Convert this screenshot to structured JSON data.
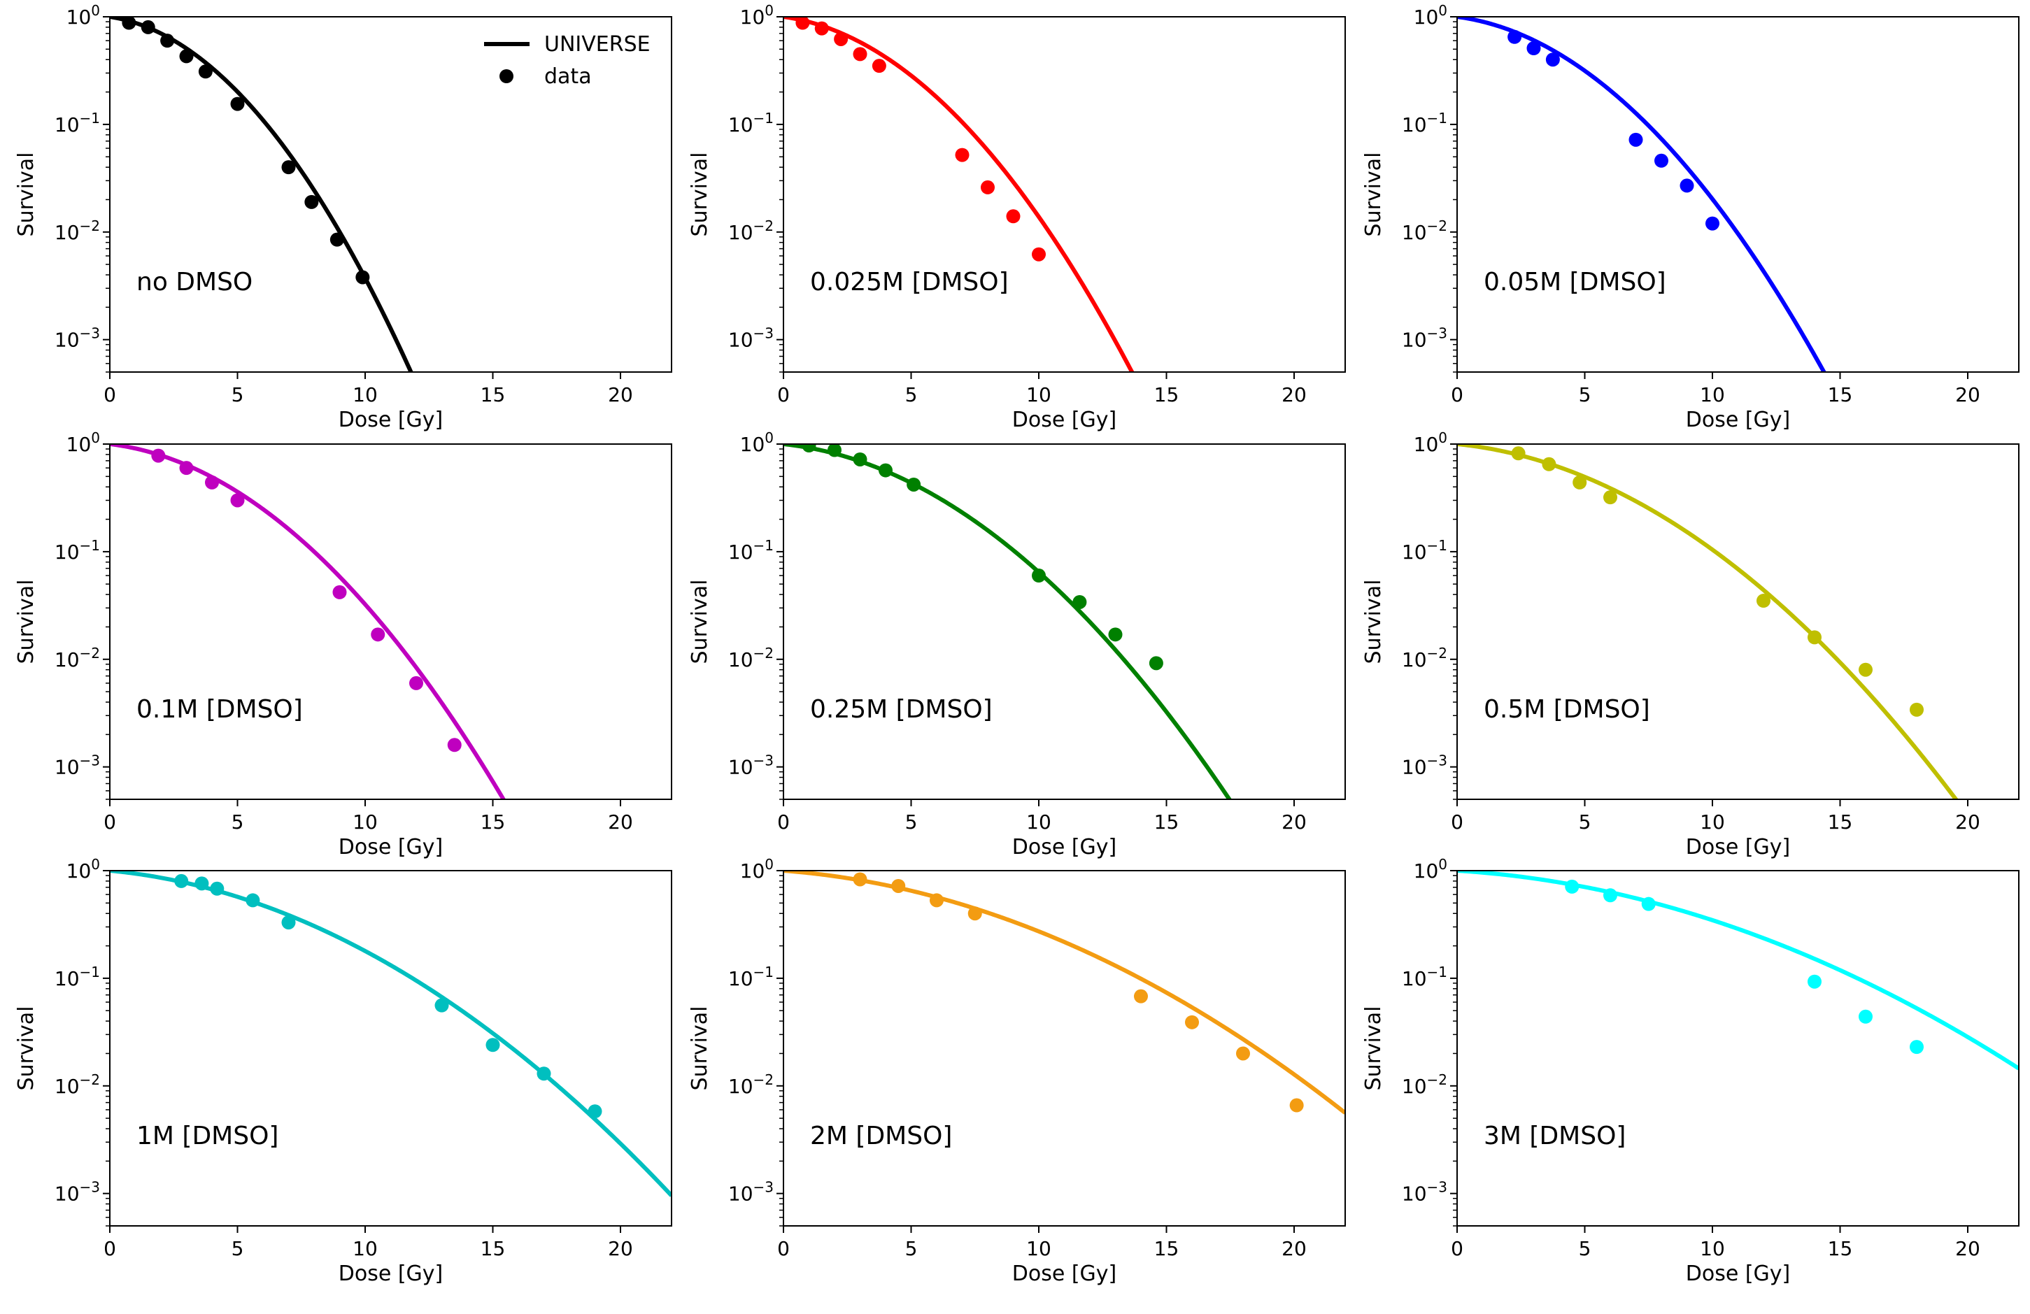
{
  "figure": {
    "rows": 3,
    "cols": 3,
    "legend": {
      "position": "top-right of first panel",
      "entries": [
        {
          "kind": "line",
          "label": "UNIVERSE"
        },
        {
          "kind": "marker",
          "label": "data"
        }
      ]
    }
  },
  "chart_data": [
    {
      "type": "line+scatter",
      "annotation": "no DMSO",
      "color": "#000000",
      "xlabel": "Dose [Gy]",
      "ylabel": "Survival",
      "xlim": [
        0,
        22
      ],
      "ylim": [
        0.0005,
        1
      ],
      "yscale": "log",
      "xticks": [
        0,
        5,
        10,
        15,
        20
      ],
      "yticks": [
        {
          "base": "10",
          "exp": "0",
          "value": 1
        },
        {
          "base": "10",
          "exp": "−1",
          "value": 0.1
        },
        {
          "base": "10",
          "exp": "−2",
          "value": 0.01
        },
        {
          "base": "10",
          "exp": "−3",
          "value": 0.001
        }
      ],
      "model": {
        "alpha": 0.083,
        "beta": 0.0476
      },
      "data": {
        "x": [
          0.75,
          1.5,
          2.25,
          3.0,
          3.75,
          5.0,
          7.0,
          7.9,
          8.9,
          9.9
        ],
        "y": [
          0.88,
          0.8,
          0.6,
          0.43,
          0.31,
          0.155,
          0.04,
          0.019,
          0.0085,
          0.0038
        ]
      }
    },
    {
      "type": "line+scatter",
      "annotation": "0.025M [DMSO]",
      "color": "#ff0000",
      "xlabel": "Dose [Gy]",
      "ylabel": "Survival",
      "xlim": [
        0,
        22
      ],
      "ylim": [
        0.0005,
        1
      ],
      "yscale": "log",
      "xticks": [
        0,
        5,
        10,
        15,
        20
      ],
      "yticks": [
        {
          "base": "10",
          "exp": "0",
          "value": 1
        },
        {
          "base": "10",
          "exp": "−1",
          "value": 0.1
        },
        {
          "base": "10",
          "exp": "−2",
          "value": 0.01
        },
        {
          "base": "10",
          "exp": "−3",
          "value": 0.001
        }
      ],
      "model": {
        "alpha": 0.075,
        "beta": 0.0353
      },
      "data": {
        "x": [
          0.75,
          1.5,
          2.25,
          3.0,
          3.75,
          7.0,
          8.0,
          9.0,
          10.0
        ],
        "y": [
          0.88,
          0.78,
          0.62,
          0.45,
          0.35,
          0.052,
          0.026,
          0.014,
          0.0062
        ]
      }
    },
    {
      "type": "line+scatter",
      "annotation": "0.05M [DMSO]",
      "color": "#0000ff",
      "xlabel": "Dose [Gy]",
      "ylabel": "Survival",
      "xlim": [
        0,
        22
      ],
      "ylim": [
        0.0005,
        1
      ],
      "yscale": "log",
      "xticks": [
        0,
        5,
        10,
        15,
        20
      ],
      "yticks": [
        {
          "base": "10",
          "exp": "0",
          "value": 1
        },
        {
          "base": "10",
          "exp": "−1",
          "value": 0.1
        },
        {
          "base": "10",
          "exp": "−2",
          "value": 0.01
        },
        {
          "base": "10",
          "exp": "−3",
          "value": 0.001
        }
      ],
      "model": {
        "alpha": 0.072,
        "beta": 0.0318
      },
      "data": {
        "x": [
          2.25,
          3.0,
          3.75,
          7.0,
          8.0,
          9.0,
          10.0
        ],
        "y": [
          0.65,
          0.51,
          0.4,
          0.072,
          0.046,
          0.027,
          0.012
        ]
      }
    },
    {
      "type": "line+scatter",
      "annotation": "0.1M [DMSO]",
      "color": "#bf00bf",
      "xlabel": "Dose [Gy]",
      "ylabel": "Survival",
      "xlim": [
        0,
        22
      ],
      "ylim": [
        0.0005,
        1
      ],
      "yscale": "log",
      "xticks": [
        0,
        5,
        10,
        15,
        20
      ],
      "yticks": [
        {
          "base": "10",
          "exp": "0",
          "value": 1
        },
        {
          "base": "10",
          "exp": "−1",
          "value": 0.1
        },
        {
          "base": "10",
          "exp": "−2",
          "value": 0.01
        },
        {
          "base": "10",
          "exp": "−3",
          "value": 0.001
        }
      ],
      "model": {
        "alpha": 0.066,
        "beta": 0.0277
      },
      "data": {
        "x": [
          1.9,
          3.0,
          4.0,
          5.0,
          9.0,
          10.5,
          12.0,
          13.5
        ],
        "y": [
          0.78,
          0.6,
          0.44,
          0.3,
          0.042,
          0.017,
          0.006,
          0.0016
        ]
      }
    },
    {
      "type": "line+scatter",
      "annotation": "0.25M [DMSO]",
      "color": "#008000",
      "xlabel": "Dose [Gy]",
      "ylabel": "Survival",
      "xlim": [
        0,
        22
      ],
      "ylim": [
        0.0005,
        1
      ],
      "yscale": "log",
      "xticks": [
        0,
        5,
        10,
        15,
        20
      ],
      "yticks": [
        {
          "base": "10",
          "exp": "0",
          "value": 1
        },
        {
          "base": "10",
          "exp": "−1",
          "value": 0.1
        },
        {
          "base": "10",
          "exp": "−2",
          "value": 0.01
        },
        {
          "base": "10",
          "exp": "−3",
          "value": 0.001
        }
      ],
      "model": {
        "alpha": 0.058,
        "beta": 0.0216
      },
      "data": {
        "x": [
          1.0,
          2.0,
          3.0,
          4.0,
          5.1,
          10.0,
          11.6,
          13.0,
          14.6
        ],
        "y": [
          0.97,
          0.88,
          0.72,
          0.57,
          0.42,
          0.06,
          0.034,
          0.017,
          0.0092
        ]
      }
    },
    {
      "type": "line+scatter",
      "annotation": "0.5M [DMSO]",
      "color": "#bfbf00",
      "xlabel": "Dose [Gy]",
      "ylabel": "Survival",
      "xlim": [
        0,
        22
      ],
      "ylim": [
        0.0005,
        1
      ],
      "yscale": "log",
      "xticks": [
        0,
        5,
        10,
        15,
        20
      ],
      "yticks": [
        {
          "base": "10",
          "exp": "0",
          "value": 1
        },
        {
          "base": "10",
          "exp": "−1",
          "value": 0.1
        },
        {
          "base": "10",
          "exp": "−2",
          "value": 0.01
        },
        {
          "base": "10",
          "exp": "−3",
          "value": 0.001
        }
      ],
      "model": {
        "alpha": 0.055,
        "beta": 0.0171
      },
      "data": {
        "x": [
          2.4,
          3.6,
          4.8,
          6.0,
          12.0,
          14.0,
          16.0,
          18.0
        ],
        "y": [
          0.82,
          0.65,
          0.44,
          0.32,
          0.035,
          0.016,
          0.008,
          0.0034
        ]
      }
    },
    {
      "type": "line+scatter",
      "annotation": "1M [DMSO]",
      "color": "#00bfbf",
      "xlabel": "Dose [Gy]",
      "ylabel": "Survival",
      "xlim": [
        0,
        22
      ],
      "ylim": [
        0.0005,
        1
      ],
      "yscale": "log",
      "xticks": [
        0,
        5,
        10,
        15,
        20
      ],
      "yticks": [
        {
          "base": "10",
          "exp": "0",
          "value": 1
        },
        {
          "base": "10",
          "exp": "−1",
          "value": 0.1
        },
        {
          "base": "10",
          "exp": "−2",
          "value": 0.01
        },
        {
          "base": "10",
          "exp": "−3",
          "value": 0.001
        }
      ],
      "model": {
        "alpha": 0.052,
        "beta": 0.012
      },
      "data": {
        "x": [
          2.8,
          3.6,
          4.2,
          5.6,
          7.0,
          13.0,
          15.0,
          17.0,
          19.0
        ],
        "y": [
          0.8,
          0.76,
          0.68,
          0.53,
          0.33,
          0.056,
          0.024,
          0.013,
          0.0058
        ]
      }
    },
    {
      "type": "line+scatter",
      "annotation": "2M [DMSO]",
      "color": "#f39c12",
      "xlabel": "Dose [Gy]",
      "ylabel": "Survival",
      "xlim": [
        0,
        22
      ],
      "ylim": [
        0.0005,
        1
      ],
      "yscale": "log",
      "xticks": [
        0,
        5,
        10,
        15,
        20
      ],
      "yticks": [
        {
          "base": "10",
          "exp": "0",
          "value": 1
        },
        {
          "base": "10",
          "exp": "−1",
          "value": 0.1
        },
        {
          "base": "10",
          "exp": "−2",
          "value": 0.01
        },
        {
          "base": "10",
          "exp": "−3",
          "value": 0.001
        }
      ],
      "model": {
        "alpha": 0.042,
        "beta": 0.0088
      },
      "data": {
        "x": [
          3.0,
          4.5,
          6.0,
          7.5,
          14.0,
          16.0,
          18.0,
          20.1
        ],
        "y": [
          0.83,
          0.72,
          0.53,
          0.4,
          0.068,
          0.039,
          0.02,
          0.0066
        ]
      }
    },
    {
      "type": "line+scatter",
      "annotation": "3M [DMSO]",
      "color": "#00ffff",
      "xlabel": "Dose [Gy]",
      "ylabel": "Survival",
      "xlim": [
        0,
        22
      ],
      "ylim": [
        0.0005,
        1
      ],
      "yscale": "log",
      "xticks": [
        0,
        5,
        10,
        15,
        20
      ],
      "yticks": [
        {
          "base": "10",
          "exp": "0",
          "value": 1
        },
        {
          "base": "10",
          "exp": "−1",
          "value": 0.1
        },
        {
          "base": "10",
          "exp": "−2",
          "value": 0.01
        },
        {
          "base": "10",
          "exp": "−3",
          "value": 0.001
        }
      ],
      "model": {
        "alpha": 0.034,
        "beta": 0.0072
      },
      "data": {
        "x": [
          4.5,
          6.0,
          7.5,
          14.0,
          16.0,
          18.0
        ],
        "y": [
          0.71,
          0.59,
          0.49,
          0.093,
          0.044,
          0.023
        ]
      }
    }
  ]
}
